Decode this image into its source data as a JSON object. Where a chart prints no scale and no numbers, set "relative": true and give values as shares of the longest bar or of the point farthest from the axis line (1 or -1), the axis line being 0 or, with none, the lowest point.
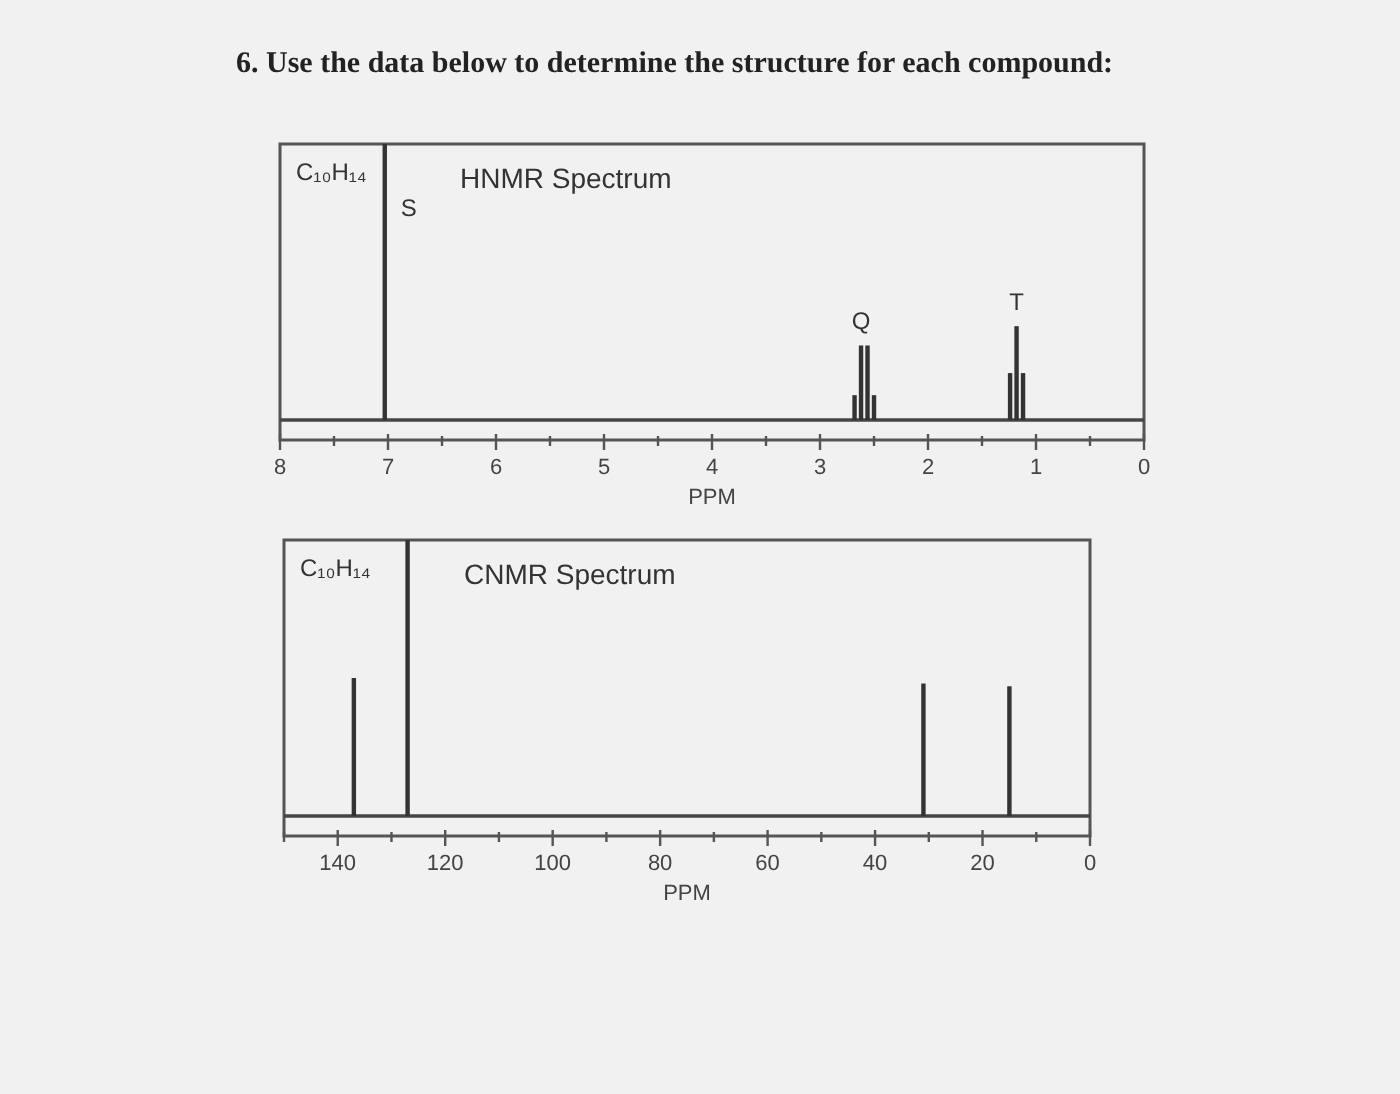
{
  "chart_data": [
    {
      "type": "bar",
      "title": "HNMR Spectrum",
      "xlabel": "PPM",
      "relative": true,
      "xlim": [
        8,
        0
      ],
      "xticks": [
        8,
        {
          "value": 7.5,
          "label": null
        },
        7,
        {
          "value": 6.5,
          "label": null
        },
        6,
        {
          "value": 5.5,
          "label": null
        },
        5,
        {
          "value": 4.5,
          "label": null
        },
        4,
        {
          "value": 3.5,
          "label": null
        },
        3,
        {
          "value": 2.5,
          "label": null
        },
        2,
        {
          "value": 1.5,
          "label": null
        },
        1,
        {
          "value": 0.5,
          "label": null
        },
        0
      ],
      "x": [
        7.03,
        2.68,
        2.62,
        2.56,
        2.5,
        1.24,
        1.18,
        1.12
      ],
      "values": [
        1,
        0.09,
        0.27,
        0.27,
        0.09,
        0.17,
        0.34,
        0.17
      ],
      "color": "#333333",
      "annotations": [
        "6. Use the data below to determine the structure for each compound:",
        "C₁₀H₁₄",
        {
          "text": "S",
          "x": 7.03,
          "y": 1
        },
        {
          "text": "Q",
          "x": 2.62,
          "y": 0.27
        },
        {
          "text": "T",
          "x": 1.18,
          "y": 0.34
        }
      ]
    },
    {
      "type": "bar",
      "title": "CNMR Spectrum",
      "xlabel": "PPM",
      "relative": true,
      "xlim": [
        150,
        0
      ],
      "xticks": [
        {
          "value": 150,
          "label": null
        },
        140,
        {
          "value": 130,
          "label": null
        },
        120,
        {
          "value": 110,
          "label": null
        },
        100,
        {
          "value": 90,
          "label": null
        },
        80,
        {
          "value": 70,
          "label": null
        },
        60,
        {
          "value": 50,
          "label": null
        },
        40,
        {
          "value": 30,
          "label": null
        },
        20,
        {
          "value": 10,
          "label": null
        },
        0
      ],
      "x": [
        137,
        127,
        31,
        15
      ],
      "values": [
        0.5,
        1,
        0.48,
        0.47
      ],
      "color": "#333333",
      "annotations": [
        "C₁₀H₁₄"
      ]
    }
  ]
}
